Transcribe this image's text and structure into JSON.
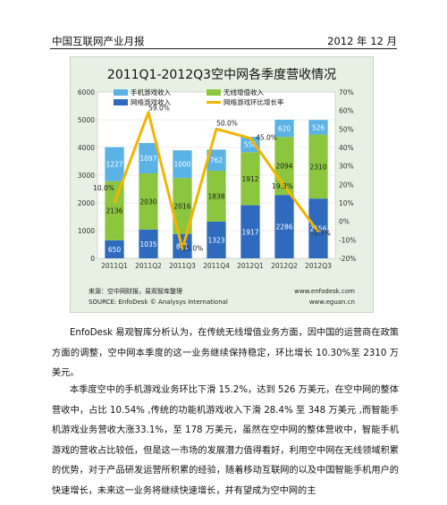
{
  "header": {
    "left": "中国互联网产业月报",
    "right": "2012 年 12 月"
  },
  "chart_data": {
    "type": "bar",
    "title": "2011Q1-2012Q3空中网各季度营收情况",
    "categories": [
      "2011Q1",
      "2011Q2",
      "2011Q3",
      "2011Q4",
      "2012Q1",
      "2012Q2",
      "2012Q3"
    ],
    "series": [
      {
        "name": "网络游戏收入",
        "values": [
          650,
          1035,
          881,
          1323,
          1917,
          2286,
          2156
        ],
        "color": "#2e6bbf",
        "labels": [
          "650",
          "1035",
          "881",
          "1323",
          "1917",
          "2286",
          "2156"
        ]
      },
      {
        "name": "无线增值收入",
        "values": [
          2136,
          2030,
          2016,
          1838,
          1912,
          2094,
          2310
        ],
        "color": "#8cc63f",
        "labels": [
          "2136",
          "2030",
          "2016",
          "1838",
          "1912",
          "2094",
          "2310"
        ]
      },
      {
        "name": "手机游戏收入",
        "values": [
          1227,
          1097,
          1000,
          762,
          556,
          620,
          526
        ],
        "color": "#5bb2e5",
        "labels": [
          "1227",
          "1097",
          "1000",
          "762",
          "556",
          "620",
          "526"
        ]
      }
    ],
    "line": {
      "name": "网络游戏环比增长率",
      "values": [
        10.0,
        59.0,
        -15.0,
        50.0,
        45.0,
        19.3,
        -5.7
      ],
      "labels": [
        "10.0%",
        "59.0%",
        "-15.0%",
        "50.0%",
        "45.0%",
        "19.3%",
        "-5.7%"
      ],
      "color": "#f4b400"
    },
    "y_left": {
      "min": 0,
      "max": 6000,
      "ticks": [
        "0",
        "1000",
        "2000",
        "3000",
        "4000",
        "5000",
        "6000"
      ]
    },
    "y_right": {
      "min": -20,
      "max": 70,
      "ticks": [
        "-20%",
        "-10%",
        "0%",
        "10%",
        "20%",
        "30%",
        "40%",
        "50%",
        "60%",
        "70%"
      ]
    },
    "legend_position": "top",
    "source_left": "来源：空中网财报，易观智库整理",
    "source_left_en": "SOURCE: EnfoDesk © Analysys International",
    "source_right": "www.enfodesk.com",
    "source_right2": "www.eguan.cn"
  },
  "body": {
    "p1": "EnfoDesk 易观智库分析认为，在传统无线增值业务方面，因中国的运营商在政策方面的调整，空中网本季度的这一业务继续保持稳定，环比增长 10.30%至 2310 万美元。",
    "p2": "本季度空中的手机游戏业务环比下滑 15.2%，达到 526 万美元，在空中网的整体营收中，占比 10.54%    ,传统的功能机游戏收入下滑 28.4% 至 348 万美元 ,而智能手机游戏业务营收大涨33.1%，至 178 万美元，虽然在空中网的整体营收中，智能手机游戏的营收占比较低，但是这一市场的发展潜力值得看好，利用空中网在无线领域积累的优势，对于产品研发运营所积累的经验，随着移动互联网的以及中国智能手机用户的快速增长，未来这一业务将继续快速增长，并有望成为空中网的主"
  }
}
